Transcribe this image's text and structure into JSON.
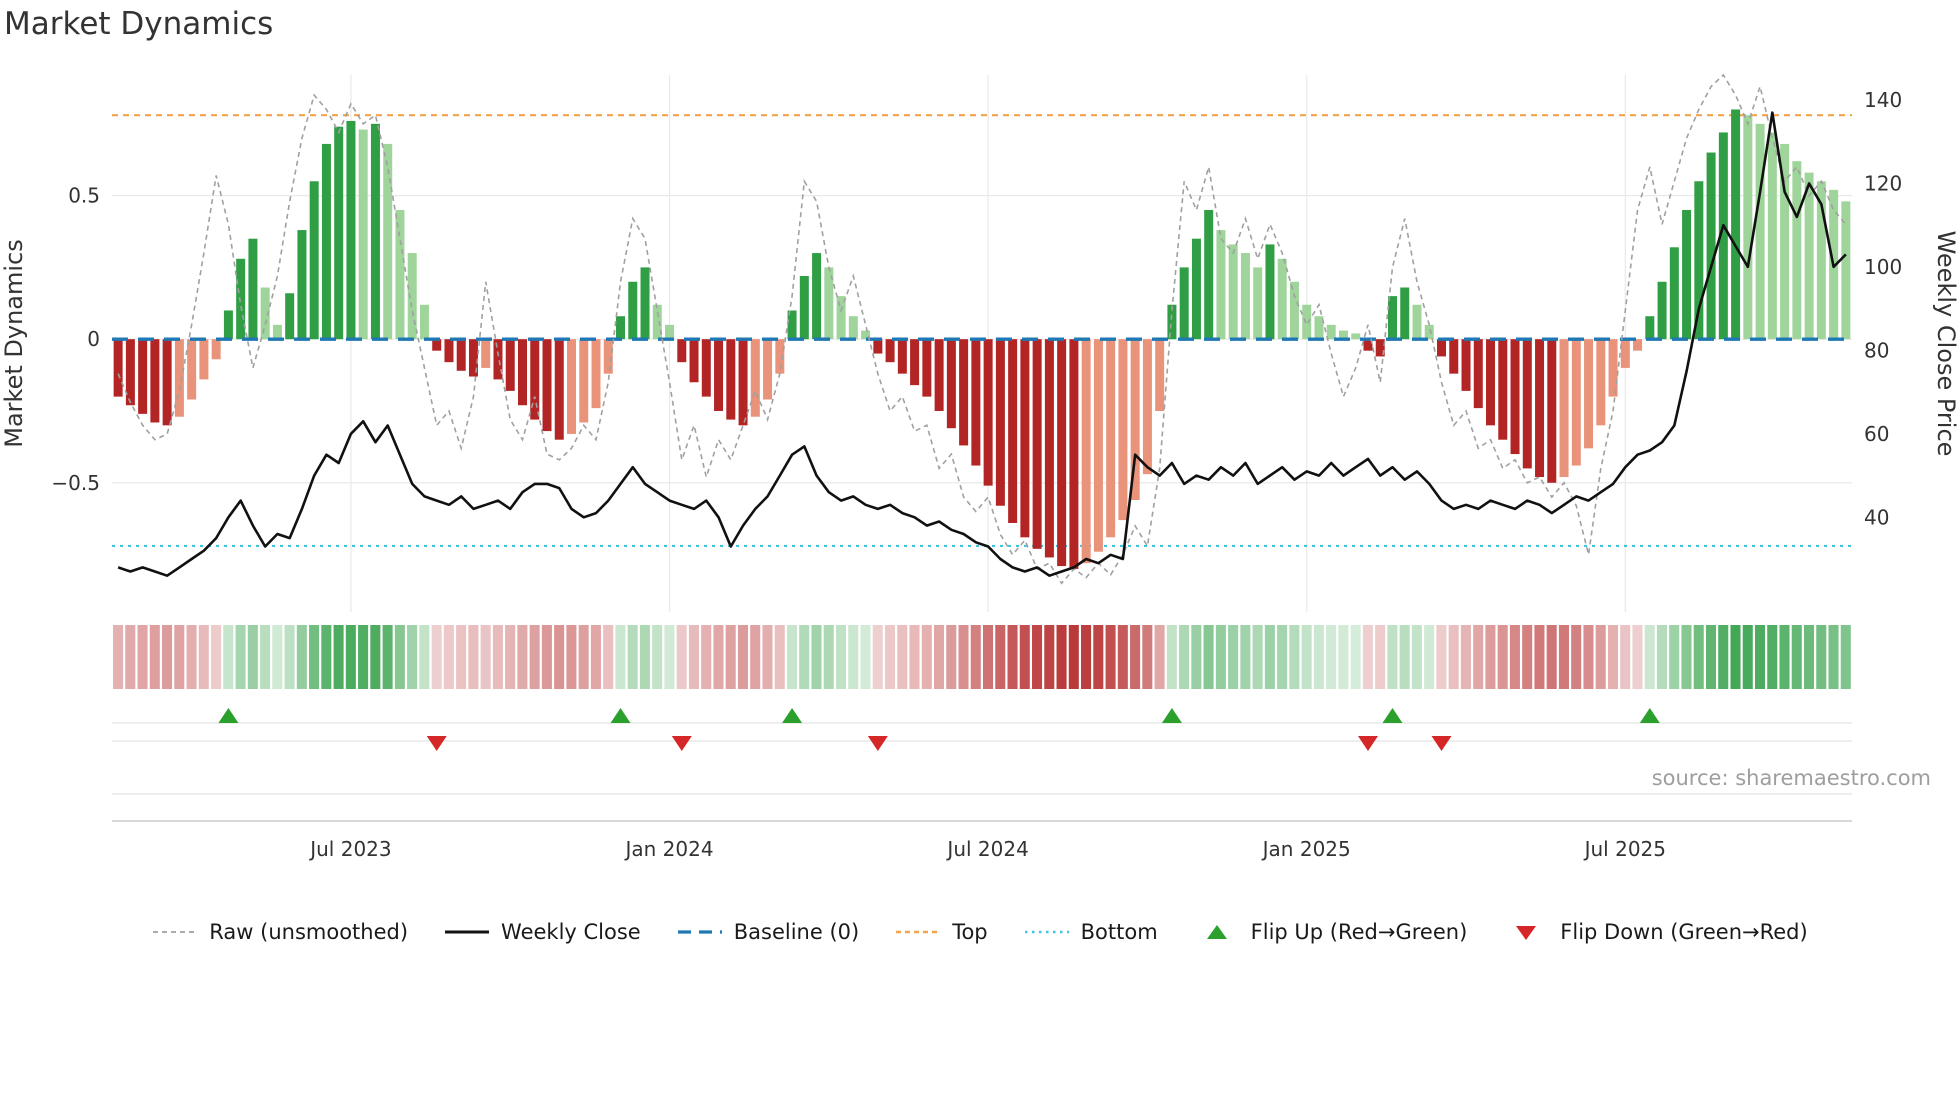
{
  "title": "Market Dynamics",
  "source": "source: sharemaestro.com",
  "colors": {
    "bar_green_dark": "#2f9e44",
    "bar_green_light": "#9fd59b",
    "bar_red_dark": "#b32424",
    "bar_red_light": "#e8937a",
    "raw": "#a0a0a0",
    "close": "#111111",
    "baseline": "#1f77b4",
    "top": "#f4a24c",
    "bottom": "#3ec6e0",
    "flip_up": "#2ca02c",
    "flip_down": "#d62728",
    "grid": "#e9e9e9",
    "row_line": "#dddddd",
    "axis_line": "#cccccc",
    "axis_text": "#333333"
  },
  "legend": [
    {
      "label": "Raw (unsmoothed)",
      "swatch": "raw-line"
    },
    {
      "label": "Weekly Close",
      "swatch": "close-line"
    },
    {
      "label": "Baseline (0)",
      "swatch": "baseline-line"
    },
    {
      "label": "Top",
      "swatch": "top-line"
    },
    {
      "label": "Bottom",
      "swatch": "bottom-line"
    },
    {
      "label": "Flip Up (Red→Green)",
      "swatch": "flip-up-marker"
    },
    {
      "label": "Flip Down (Green→Red)",
      "swatch": "flip-down-marker"
    }
  ],
  "chart_data": {
    "type": "bar",
    "title": "Market Dynamics",
    "x_axis": {
      "start_date": "2023-02-20",
      "interval": "weekly",
      "n_points": 142,
      "tick_labels": [
        "Jul 2023",
        "Jan 2024",
        "Jul 2024",
        "Jan 2025",
        "Jul 2025"
      ],
      "tick_weeks": [
        19,
        45,
        71,
        97,
        123
      ]
    },
    "left_axis": {
      "label": "Market Dynamics",
      "range": [
        -0.95,
        0.92
      ],
      "ticks": [
        {
          "v": 0.5,
          "label": "0.5"
        },
        {
          "v": 0,
          "label": "0"
        },
        {
          "v": -0.5,
          "label": "−0.5"
        }
      ]
    },
    "right_axis": {
      "label": "Weekly Close Price",
      "range": [
        17.3,
        146
      ],
      "ticks": [
        {
          "v": 40,
          "label": "40"
        },
        {
          "v": 60,
          "label": "60"
        },
        {
          "v": 80,
          "label": "80"
        },
        {
          "v": 100,
          "label": "100"
        },
        {
          "v": 120,
          "label": "120"
        },
        {
          "v": 140,
          "label": "140"
        }
      ]
    },
    "reference_lines": {
      "baseline": 0,
      "top": 0.78,
      "bottom": -0.72
    },
    "series": [
      {
        "name": "Market Dynamics (smoothed oscillator bars)",
        "type": "bar",
        "axis": "left",
        "color_rule": "dark green rising / light green falling when positive; dark red deepening / salmon recovering when negative",
        "values": [
          -0.2,
          -0.23,
          -0.26,
          -0.29,
          -0.3,
          -0.27,
          -0.21,
          -0.14,
          -0.07,
          0.1,
          0.28,
          0.35,
          0.18,
          0.05,
          0.16,
          0.38,
          0.55,
          0.68,
          0.74,
          0.76,
          0.73,
          0.75,
          0.68,
          0.45,
          0.3,
          0.12,
          -0.04,
          -0.08,
          -0.11,
          -0.13,
          -0.1,
          -0.14,
          -0.18,
          -0.23,
          -0.28,
          -0.32,
          -0.35,
          -0.33,
          -0.29,
          -0.24,
          -0.12,
          0.08,
          0.2,
          0.25,
          0.12,
          0.05,
          -0.08,
          -0.15,
          -0.2,
          -0.25,
          -0.28,
          -0.3,
          -0.27,
          -0.21,
          -0.12,
          0.1,
          0.22,
          0.3,
          0.25,
          0.15,
          0.08,
          0.03,
          -0.05,
          -0.08,
          -0.12,
          -0.16,
          -0.2,
          -0.25,
          -0.31,
          -0.37,
          -0.44,
          -0.51,
          -0.58,
          -0.64,
          -0.69,
          -0.73,
          -0.76,
          -0.79,
          -0.8,
          -0.78,
          -0.74,
          -0.69,
          -0.63,
          -0.56,
          -0.47,
          -0.25,
          0.12,
          0.25,
          0.35,
          0.45,
          0.38,
          0.33,
          0.3,
          0.25,
          0.33,
          0.28,
          0.2,
          0.12,
          0.08,
          0.05,
          0.03,
          0.02,
          -0.04,
          -0.06,
          0.15,
          0.18,
          0.12,
          0.05,
          -0.06,
          -0.12,
          -0.18,
          -0.24,
          -0.3,
          -0.35,
          -0.4,
          -0.45,
          -0.48,
          -0.5,
          -0.48,
          -0.44,
          -0.38,
          -0.3,
          -0.2,
          -0.1,
          -0.04,
          0.08,
          0.2,
          0.32,
          0.45,
          0.55,
          0.65,
          0.72,
          0.8,
          0.78,
          0.75,
          0.72,
          0.68,
          0.62,
          0.58,
          0.55,
          0.52,
          0.48
        ]
      },
      {
        "name": "Raw (unsmoothed)",
        "type": "line",
        "axis": "left",
        "style": "dashed gray",
        "values": [
          -0.12,
          -0.22,
          -0.3,
          -0.35,
          -0.33,
          -0.18,
          0.05,
          0.3,
          0.57,
          0.4,
          0.12,
          -0.1,
          0.05,
          0.22,
          0.48,
          0.7,
          0.85,
          0.8,
          0.72,
          0.82,
          0.75,
          0.78,
          0.6,
          0.35,
          0.1,
          -0.1,
          -0.3,
          -0.25,
          -0.38,
          -0.2,
          0.2,
          -0.05,
          -0.28,
          -0.35,
          -0.2,
          -0.4,
          -0.42,
          -0.38,
          -0.3,
          -0.35,
          -0.15,
          0.2,
          0.42,
          0.35,
          0.1,
          -0.15,
          -0.42,
          -0.3,
          -0.48,
          -0.35,
          -0.42,
          -0.3,
          -0.18,
          -0.28,
          -0.12,
          0.15,
          0.55,
          0.48,
          0.25,
          0.1,
          0.22,
          0.05,
          -0.12,
          -0.25,
          -0.2,
          -0.32,
          -0.3,
          -0.45,
          -0.4,
          -0.55,
          -0.6,
          -0.55,
          -0.68,
          -0.75,
          -0.7,
          -0.8,
          -0.78,
          -0.85,
          -0.8,
          -0.83,
          -0.78,
          -0.82,
          -0.75,
          -0.65,
          -0.72,
          -0.45,
          0.1,
          0.55,
          0.45,
          0.6,
          0.35,
          0.3,
          0.42,
          0.28,
          0.4,
          0.3,
          0.15,
          0.05,
          0.12,
          -0.05,
          -0.2,
          -0.1,
          0.05,
          -0.15,
          0.25,
          0.42,
          0.2,
          0.05,
          -0.15,
          -0.3,
          -0.25,
          -0.38,
          -0.35,
          -0.45,
          -0.42,
          -0.5,
          -0.48,
          -0.55,
          -0.5,
          -0.58,
          -0.75,
          -0.45,
          -0.25,
          0.1,
          0.45,
          0.6,
          0.4,
          0.55,
          0.7,
          0.8,
          0.88,
          0.92,
          0.85,
          0.75,
          0.88,
          0.7,
          0.55,
          0.6,
          0.5,
          0.55,
          0.45,
          0.4
        ]
      },
      {
        "name": "Weekly Close",
        "type": "line",
        "axis": "right",
        "style": "solid black",
        "values": [
          28,
          27,
          28,
          27,
          26,
          28,
          30,
          32,
          35,
          40,
          44,
          38,
          33,
          36,
          35,
          42,
          50,
          55,
          53,
          60,
          63,
          58,
          62,
          55,
          48,
          45,
          44,
          43,
          45,
          42,
          43,
          44,
          42,
          46,
          48,
          48,
          47,
          42,
          40,
          41,
          44,
          48,
          52,
          48,
          46,
          44,
          43,
          42,
          44,
          40,
          33,
          38,
          42,
          45,
          50,
          55,
          57,
          50,
          46,
          44,
          45,
          43,
          42,
          43,
          41,
          40,
          38,
          39,
          37,
          36,
          34,
          33,
          30,
          28,
          27,
          28,
          26,
          27,
          28,
          30,
          29,
          31,
          30,
          55,
          52,
          50,
          53,
          48,
          50,
          49,
          52,
          50,
          53,
          48,
          50,
          52,
          49,
          51,
          50,
          53,
          50,
          52,
          54,
          50,
          52,
          49,
          51,
          48,
          44,
          42,
          43,
          42,
          44,
          43,
          42,
          44,
          43,
          41,
          43,
          45,
          44,
          46,
          48,
          52,
          55,
          56,
          58,
          62,
          75,
          90,
          100,
          110,
          105,
          100,
          118,
          137,
          118,
          112,
          120,
          115,
          100,
          103
        ]
      }
    ],
    "flips": [
      {
        "week": 9,
        "dir": "up"
      },
      {
        "week": 26,
        "dir": "down"
      },
      {
        "week": 41,
        "dir": "up"
      },
      {
        "week": 46,
        "dir": "down"
      },
      {
        "week": 55,
        "dir": "up"
      },
      {
        "week": 62,
        "dir": "down"
      },
      {
        "week": 86,
        "dir": "up"
      },
      {
        "week": 102,
        "dir": "down"
      },
      {
        "week": 104,
        "dir": "up"
      },
      {
        "week": 108,
        "dir": "down"
      },
      {
        "week": 125,
        "dir": "up"
      }
    ],
    "heatmap_source": "bars",
    "grid": true,
    "legend_position": "bottom-center"
  }
}
